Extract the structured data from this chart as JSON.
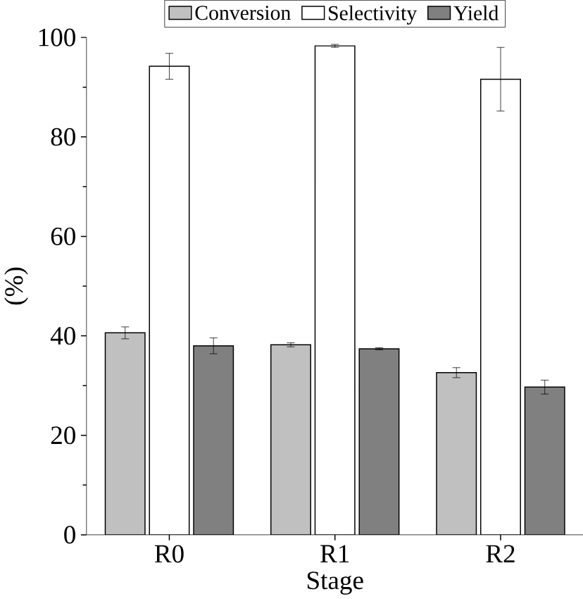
{
  "chart_data": {
    "type": "bar",
    "xlabel": "Stage",
    "ylabel": "(%)",
    "categories": [
      "R0",
      "R1",
      "R2"
    ],
    "series": [
      {
        "name": "Conversion",
        "color": "#c0c0c0",
        "values": [
          40.6,
          38.2,
          32.6
        ],
        "errors": [
          1.2,
          0.4,
          1.0
        ]
      },
      {
        "name": "Selectivity",
        "color": "#ffffff",
        "values": [
          94.2,
          98.3,
          91.6
        ],
        "errors": [
          2.6,
          0.3,
          6.4
        ]
      },
      {
        "name": "Yield",
        "color": "#808080",
        "values": [
          38.0,
          37.4,
          29.7
        ],
        "errors": [
          1.6,
          0.2,
          1.4
        ]
      }
    ],
    "ylim": [
      0,
      100
    ],
    "yticks": [
      0,
      20,
      40,
      60,
      80,
      100
    ],
    "legend": "top",
    "grid": false
  }
}
